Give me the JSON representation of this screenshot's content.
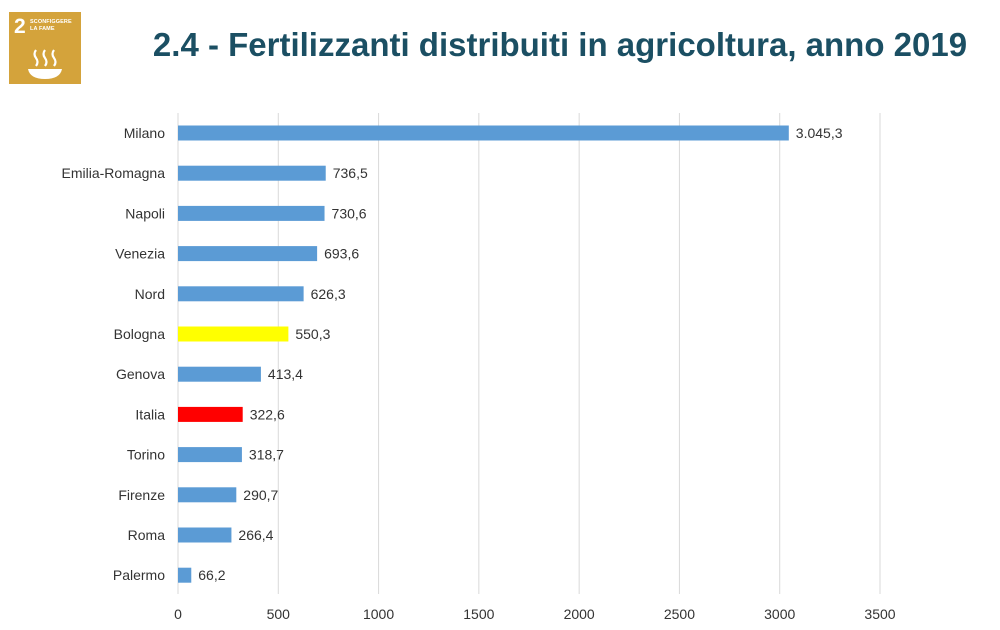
{
  "badge": {
    "number": "2",
    "line1": "SCONFIGGERE",
    "line2": "LA FAME",
    "icon": "bowl-icon",
    "color": "#d4a33b"
  },
  "title": "2.4 - Fertilizzanti distribuiti in agricoltura, anno 2019",
  "chart_data": {
    "type": "bar",
    "orientation": "horizontal",
    "title": "",
    "xlabel": "",
    "ylabel": "",
    "xlim": [
      0,
      3500
    ],
    "xticks": [
      0,
      500,
      1000,
      1500,
      2000,
      2500,
      3000,
      3500
    ],
    "xtick_labels": [
      "0",
      "500",
      "1000",
      "1500",
      "2000",
      "2500",
      "3000",
      "3500"
    ],
    "grid": "vertical",
    "categories": [
      "Milano",
      "Emilia-Romagna",
      "Napoli",
      "Venezia",
      "Nord",
      "Bologna",
      "Genova",
      "Italia",
      "Torino",
      "Firenze",
      "Roma",
      "Palermo"
    ],
    "values": [
      3045.3,
      736.5,
      730.6,
      693.6,
      626.3,
      550.3,
      413.4,
      322.6,
      318.7,
      290.7,
      266.4,
      66.2
    ],
    "value_labels": [
      "3.045,3",
      "736,5",
      "730,6",
      "693,6",
      "626,3",
      "550,3",
      "413,4",
      "322,6",
      "318,7",
      "290,7",
      "266,4",
      "66,2"
    ],
    "colors": [
      "#5b9bd5",
      "#5b9bd5",
      "#5b9bd5",
      "#5b9bd5",
      "#5b9bd5",
      "#ffff00",
      "#5b9bd5",
      "#ff0000",
      "#5b9bd5",
      "#5b9bd5",
      "#5b9bd5",
      "#5b9bd5"
    ],
    "gridline_color": "#d9d9d9"
  }
}
